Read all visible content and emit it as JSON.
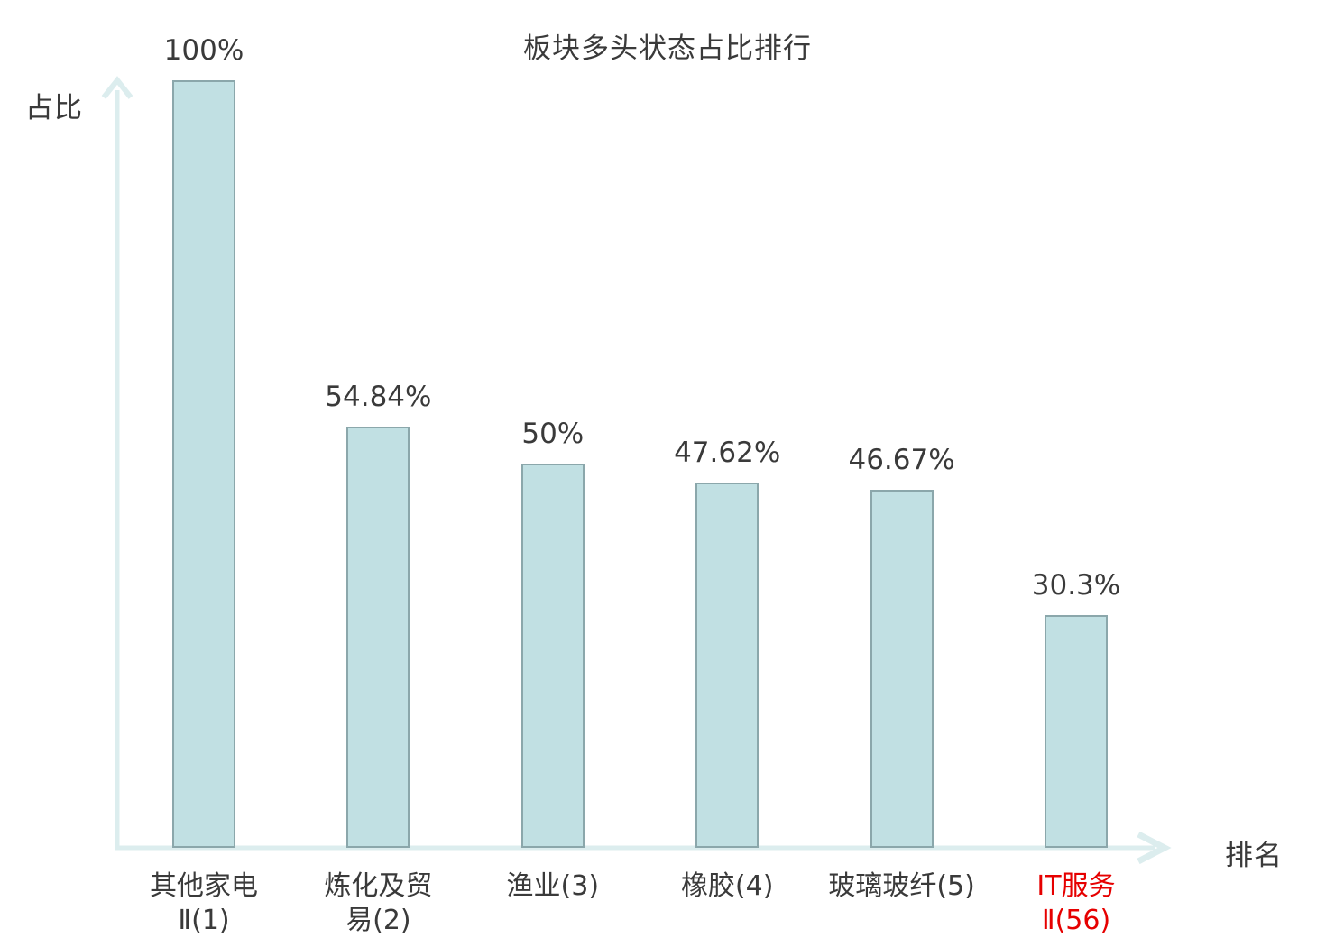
{
  "chart": {
    "title": "板块多头状态占比排行",
    "ylabel": "占比",
    "xlabel": "排名"
  },
  "chart_data": {
    "type": "bar",
    "title": "板块多头状态占比排行",
    "xlabel": "排名",
    "ylabel": "占比",
    "ylim": [
      0,
      100
    ],
    "grid": false,
    "legend": false,
    "categories": [
      "其他家电Ⅱ(1)",
      "炼化及贸易(2)",
      "渔业(3)",
      "橡胶(4)",
      "玻璃玻纤(5)",
      "IT服务Ⅱ(56)"
    ],
    "values": [
      100,
      54.84,
      50,
      47.62,
      46.67,
      30.3
    ],
    "value_labels": [
      "100%",
      "54.84%",
      "50%",
      "47.62%",
      "46.67%",
      "30.3%"
    ],
    "category_label_lines": [
      [
        "其他家电",
        "Ⅱ(1)"
      ],
      [
        "炼化及贸",
        "易(2)"
      ],
      [
        "渔业(3)"
      ],
      [
        "橡胶(4)"
      ],
      [
        "玻璃玻纤(5)"
      ],
      [
        "IT服务",
        "Ⅱ(56)"
      ]
    ],
    "category_colors": [
      "#3a3a3a",
      "#3a3a3a",
      "#3a3a3a",
      "#3a3a3a",
      "#3a3a3a",
      "#e60000"
    ],
    "colors": {
      "bar_fill": "#c1e0e3",
      "bar_border": "#8ba7ab",
      "axis": "#dcedee",
      "text": "#3a3a3a",
      "highlight": "#e60000"
    }
  }
}
